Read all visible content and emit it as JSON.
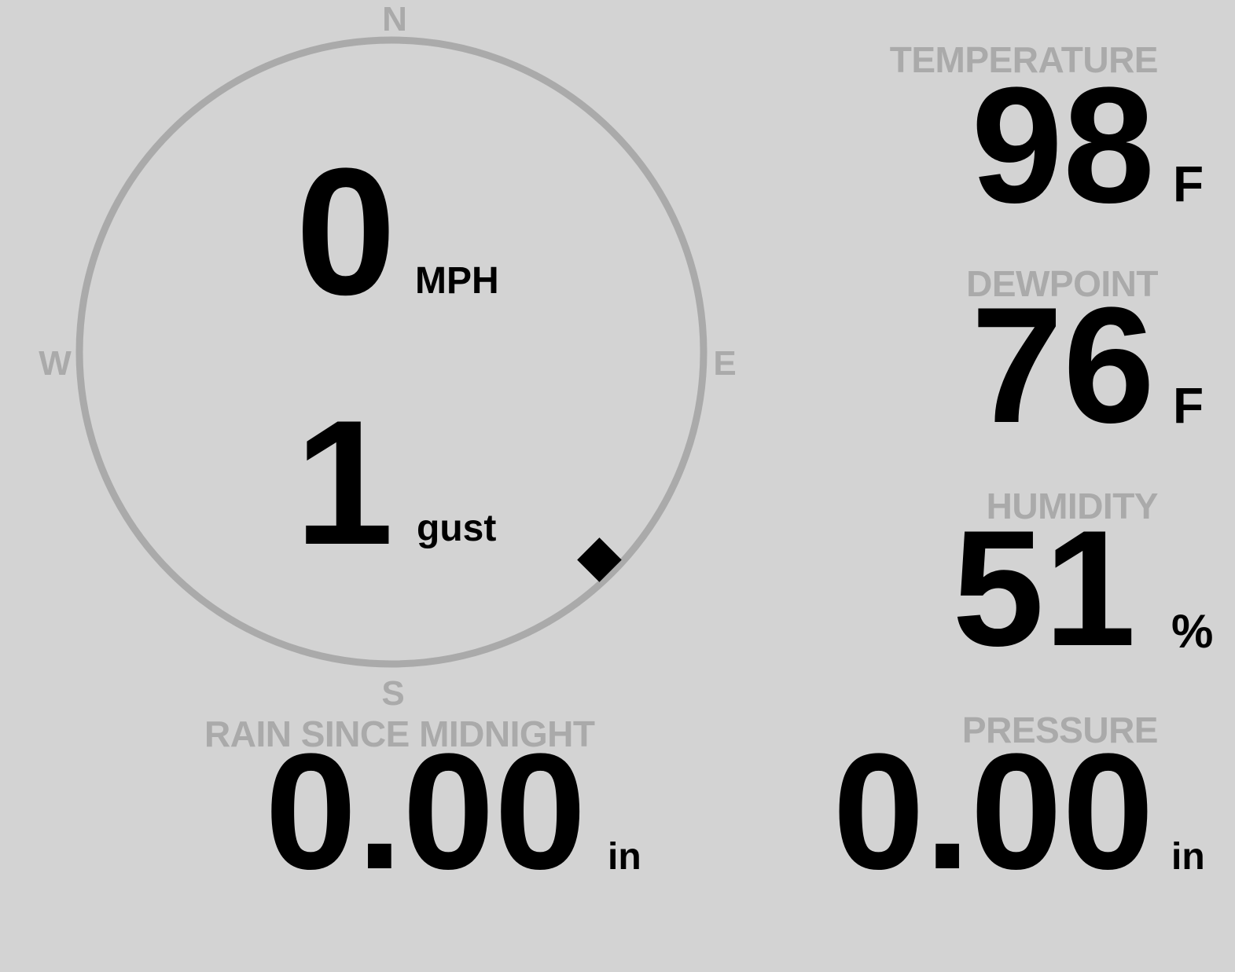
{
  "wind": {
    "compass": {
      "north": "N",
      "east": "E",
      "south": "S",
      "west": "W"
    },
    "direction_degrees": 135,
    "speed": "0",
    "speed_unit": "MPH",
    "gust": "1",
    "gust_label": "gust"
  },
  "temperature": {
    "label": "TEMPERATURE",
    "value": "98",
    "unit": "F"
  },
  "dewpoint": {
    "label": "DEWPOINT",
    "value": "76",
    "unit": "F"
  },
  "humidity": {
    "label": "HUMIDITY",
    "value": "51",
    "unit": "%"
  },
  "rain": {
    "label": "RAIN SINCE MIDNIGHT",
    "value": "0.00",
    "unit": "in"
  },
  "pressure": {
    "label": "PRESSURE",
    "value": "0.00",
    "unit": "in"
  },
  "colors": {
    "background": "#d3d3d3",
    "label": "#aaaaaa",
    "value": "#000000",
    "dial": "#aaaaaa"
  }
}
